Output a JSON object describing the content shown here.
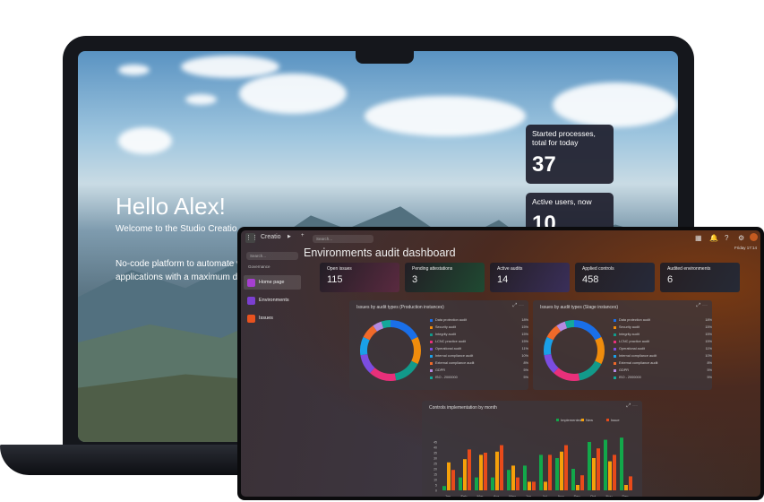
{
  "laptop": {
    "greeting": "Hello Alex!",
    "welcome": "Welcome to the Studio Creatio",
    "description_lines": [
      "No-code platform to automate w",
      "applications with a maximum de"
    ],
    "cards": [
      {
        "label": "Started processes, total for today",
        "value": "37"
      },
      {
        "label": "Active users, now",
        "value": "10"
      }
    ]
  },
  "app": {
    "brand": "Creatio",
    "search_placeholder": "Search...",
    "sidebar_search": "Search...",
    "group": "Governance",
    "nav": [
      {
        "label": "Home page",
        "color": "#a63fd0",
        "active": true
      },
      {
        "label": "Environments",
        "color": "#7b3fd0"
      },
      {
        "label": "Issues",
        "color": "#e8521f"
      }
    ],
    "date": "Friday 17:14",
    "page_title": "Environments audit dashboard",
    "kpis": [
      {
        "label": "Open issues",
        "value": "115",
        "tint": "#5a2a40"
      },
      {
        "label": "Pending attestations",
        "value": "3",
        "tint": "#1f4a32"
      },
      {
        "label": "Active audits",
        "value": "14",
        "tint": "#3a2f5a"
      },
      {
        "label": "Applied controls",
        "value": "458",
        "tint": "#262a3a"
      },
      {
        "label": "Audited environments",
        "value": "6",
        "tint": "#262a36"
      }
    ]
  },
  "chart_data": [
    {
      "type": "pie",
      "title": "Issues by audit types (Production instances)",
      "categories": [
        "Data protection audit",
        "Security audit",
        "Integrity audit",
        "LCNC practice audit",
        "Operational audit",
        "Internal compliance audit",
        "External compliance audit",
        "GDPR",
        "ISO - 2000000"
      ],
      "values": [
        18,
        15,
        15,
        15,
        11,
        10,
        8,
        5,
        5
      ],
      "labels": [
        "18%",
        "15%",
        "15%",
        "15%",
        "11%",
        "10%",
        "8%",
        "5%",
        "5%"
      ],
      "colors": [
        "#1a6fe8",
        "#f08c0c",
        "#129a8a",
        "#e8307a",
        "#7b4de0",
        "#1aa0e8",
        "#f06a2a",
        "#b48ae0",
        "#14a89a"
      ]
    },
    {
      "type": "pie",
      "title": "Issues by audit types (Stage instances)",
      "categories": [
        "Data protection audit",
        "Security audit",
        "Integrity audit",
        "LCNC practice audit",
        "Operational audit",
        "Internal compliance audit",
        "External compliance audit",
        "GDPR",
        "ISO - 2000000"
      ],
      "values": [
        18,
        15,
        15,
        15,
        11,
        10,
        8,
        5,
        5
      ],
      "labels": [
        "18%",
        "15%",
        "15%",
        "15%",
        "11%",
        "10%",
        "8%",
        "5%",
        "5%"
      ],
      "colors": [
        "#1a6fe8",
        "#f08c0c",
        "#129a8a",
        "#e8307a",
        "#7b4de0",
        "#1aa0e8",
        "#f06a2a",
        "#b48ae0",
        "#14a89a"
      ]
    },
    {
      "type": "bar",
      "title": "Controls implementation by month",
      "categories": [
        "Jan",
        "Feb",
        "Mar",
        "Apr",
        "May",
        "Jun",
        "Jul",
        "Aug",
        "Sep",
        "Oct",
        "Nov",
        "Dec"
      ],
      "series": [
        {
          "name": "Implemented",
          "color": "#12a84a",
          "values": [
            4,
            12,
            12,
            12,
            19,
            23,
            33,
            30,
            20,
            45,
            47,
            49
          ]
        },
        {
          "name": "New",
          "color": "#f5a00a",
          "values": [
            26,
            29,
            33,
            36,
            23,
            8,
            8,
            36,
            5,
            30,
            27,
            5
          ]
        },
        {
          "name": "Issue",
          "color": "#e84a1a",
          "values": [
            19,
            38,
            35,
            42,
            12,
            8,
            33,
            42,
            14,
            39,
            33,
            13
          ]
        }
      ],
      "ylim": [
        0,
        50
      ],
      "yticks": [
        "0",
        "5",
        "10",
        "15",
        "20",
        "25",
        "30",
        "35",
        "40",
        "45"
      ],
      "legend": "top-right"
    }
  ]
}
